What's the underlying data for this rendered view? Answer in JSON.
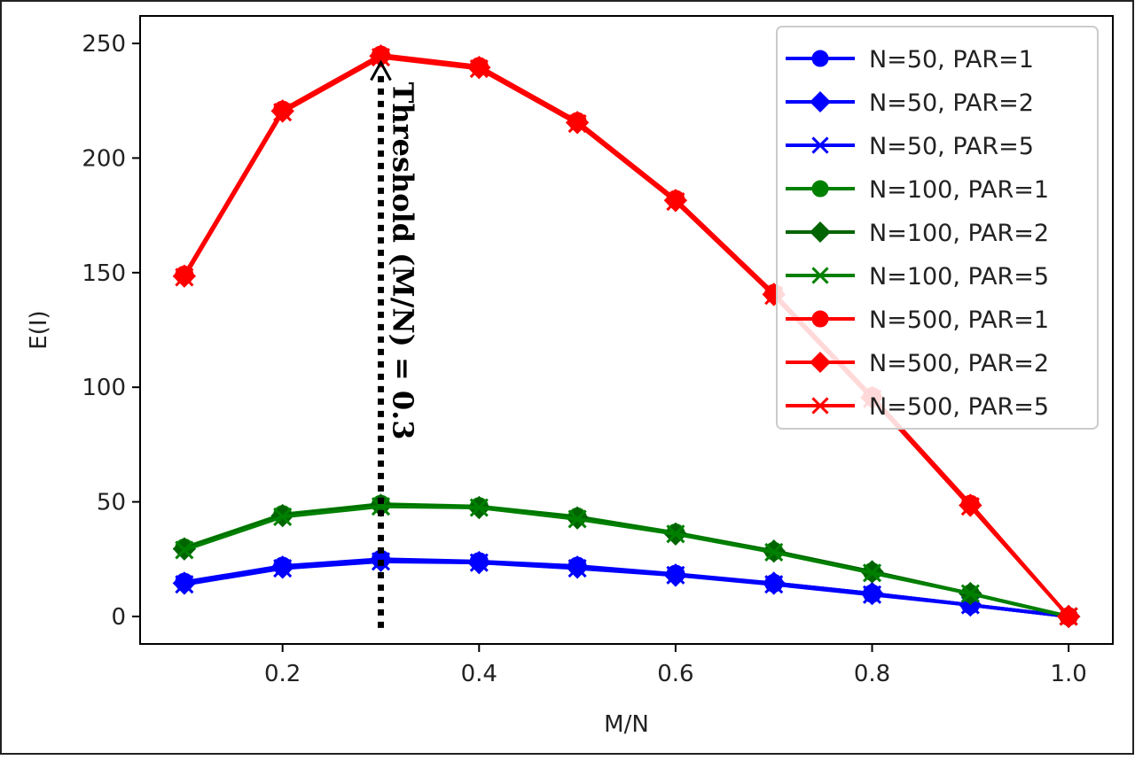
{
  "chart_data": {
    "type": "line",
    "xlabel": "M/N",
    "ylabel": "E(I)",
    "xlim": [
      0.055,
      1.045
    ],
    "ylim": [
      -12,
      262
    ],
    "xticks": [
      0.2,
      0.4,
      0.6,
      0.8,
      1.0
    ],
    "xtick_labels": [
      "0.2",
      "0.4",
      "0.6",
      "0.8",
      "1.0"
    ],
    "yticks": [
      0,
      50,
      100,
      150,
      200,
      250
    ],
    "ytick_labels": [
      "0",
      "50",
      "100",
      "150",
      "200",
      "250"
    ],
    "grid": false,
    "legend_position": "top-right",
    "x": [
      0.1,
      0.2,
      0.3,
      0.4,
      0.5,
      0.6,
      0.7,
      0.8,
      0.9,
      1.0
    ],
    "series": [
      {
        "name": "N=50, PAR=1",
        "color": "#0000ff",
        "marker": "circle",
        "values": [
          15,
          22,
          25,
          24,
          22,
          18.5,
          14.5,
          10,
          5,
          0
        ]
      },
      {
        "name": "N=50, PAR=2",
        "color": "#0000ff",
        "marker": "diamond",
        "values": [
          14.5,
          21.5,
          24.5,
          23.5,
          21.5,
          18,
          14.5,
          10,
          5,
          0
        ]
      },
      {
        "name": "N=50, PAR=5",
        "color": "#0000ff",
        "marker": "x",
        "values": [
          14,
          21,
          24,
          23.5,
          21,
          18,
          14,
          9.5,
          5,
          0
        ]
      },
      {
        "name": "N=100, PAR=1",
        "color": "#008000",
        "marker": "circle",
        "values": [
          30,
          44.5,
          49,
          48,
          43.5,
          36.5,
          28.5,
          19.5,
          10,
          0
        ]
      },
      {
        "name": "N=100, PAR=2",
        "color": "#006400",
        "marker": "diamond",
        "values": [
          29.5,
          44,
          48.5,
          47.5,
          43,
          36,
          28.5,
          19.5,
          10,
          0
        ]
      },
      {
        "name": "N=100, PAR=5",
        "color": "#008000",
        "marker": "x",
        "values": [
          29,
          43.5,
          48,
          47.5,
          42.5,
          36,
          28,
          19,
          10,
          0
        ]
      },
      {
        "name": "N=500, PAR=1",
        "color": "#ff0000",
        "marker": "circle",
        "values": [
          149,
          221,
          245,
          240,
          216,
          182,
          141,
          96,
          49,
          0
        ]
      },
      {
        "name": "N=500, PAR=2",
        "color": "#ff0000",
        "marker": "diamond",
        "values": [
          148.5,
          220.5,
          244.5,
          239.5,
          215.5,
          181.5,
          140.5,
          95.5,
          48.5,
          0
        ]
      },
      {
        "name": "N=500, PAR=5",
        "color": "#ff0000",
        "marker": "x",
        "values": [
          148,
          220,
          244,
          239,
          215,
          181,
          140,
          95,
          48,
          0
        ]
      }
    ],
    "annotations": [
      {
        "text": "Threshold (M/N) = 0.3",
        "x": 0.3,
        "y_from": -5,
        "y_to": 244,
        "style": "dotted-arrow",
        "color": "#000000"
      }
    ]
  }
}
